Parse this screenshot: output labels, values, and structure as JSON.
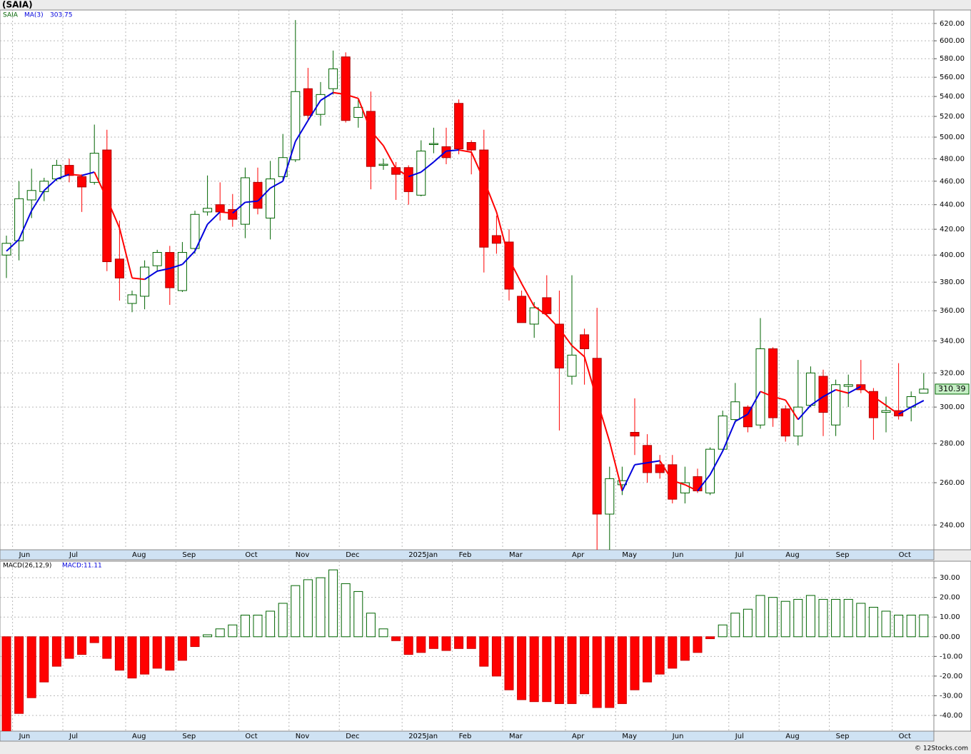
{
  "chart_data": [
    {
      "type": "candlestick",
      "title": "(SAIA)",
      "symbol": "SAIA",
      "categories": [
        null,
        "Jun",
        null,
        null,
        null,
        "Jul",
        null,
        null,
        null,
        null,
        "Aug",
        null,
        null,
        null,
        "Sep",
        null,
        null,
        null,
        null,
        "Oct",
        null,
        null,
        null,
        "Nov",
        null,
        null,
        null,
        "Dec",
        null,
        null,
        null,
        null,
        "2025Jan",
        null,
        null,
        null,
        "Feb",
        null,
        null,
        null,
        "Mar",
        null,
        null,
        null,
        null,
        "Apr",
        null,
        null,
        null,
        "May",
        null,
        null,
        null,
        "Jun",
        null,
        null,
        null,
        null,
        "Jul",
        null,
        null,
        null,
        "Aug",
        null,
        null,
        null,
        "Sep",
        null,
        null,
        null,
        null,
        "Oct",
        null,
        null
      ],
      "open": [
        400,
        411,
        444,
        451,
        462,
        474,
        464,
        459,
        488,
        397,
        365,
        370,
        392,
        402,
        374,
        405,
        434,
        440,
        436,
        424,
        459,
        429,
        464,
        479,
        548,
        522,
        548,
        582,
        519,
        525,
        474,
        472,
        472,
        448,
        493,
        491,
        533,
        495,
        488,
        415,
        410,
        370,
        351,
        369,
        351,
        318,
        344,
        329,
        245,
        259,
        286,
        279,
        269,
        269,
        255,
        263,
        255,
        277,
        293,
        300,
        290,
        335,
        299,
        284,
        301,
        318,
        290,
        312,
        313,
        309,
        297,
        298,
        300,
        308
      ],
      "high": [
        415,
        460,
        471,
        463,
        479,
        480,
        466,
        512,
        507,
        427,
        374,
        396,
        404,
        407,
        410,
        435,
        465,
        459,
        449,
        472,
        472,
        478,
        503,
        624,
        570,
        555,
        589,
        587,
        537,
        545,
        480,
        477,
        474,
        497,
        509,
        509,
        537,
        497,
        507,
        431,
        420,
        374,
        366,
        385,
        374,
        385,
        348,
        362,
        268,
        268,
        305,
        285,
        274,
        274,
        268,
        267,
        278,
        298,
        314,
        301,
        355,
        336,
        301,
        328,
        324,
        322,
        316,
        319,
        328,
        311,
        306,
        326,
        309,
        320
      ],
      "low": [
        383,
        396,
        429,
        443,
        460,
        459,
        434,
        457,
        388,
        367,
        359,
        361,
        388,
        364,
        373,
        401,
        431,
        427,
        422,
        413,
        432,
        412,
        461,
        477,
        516,
        511,
        542,
        514,
        509,
        453,
        470,
        444,
        440,
        447,
        485,
        475,
        484,
        466,
        387,
        401,
        367,
        352,
        342,
        356,
        287,
        313,
        313,
        229,
        229,
        254,
        274,
        260,
        262,
        250,
        250,
        255,
        254,
        276,
        291,
        286,
        288,
        289,
        281,
        279,
        300,
        284,
        284,
        300,
        308,
        282,
        286,
        293,
        292,
        308
      ],
      "close": [
        409,
        445,
        452,
        460,
        474,
        465,
        455,
        485,
        395,
        383,
        371,
        391,
        402,
        376,
        402,
        432,
        437,
        434,
        428,
        463,
        437,
        462,
        481,
        545,
        521,
        542,
        569,
        516,
        529,
        473,
        475,
        466,
        451,
        487,
        494,
        481,
        489,
        488,
        406,
        409,
        375,
        352,
        362,
        358,
        323,
        331,
        335,
        245,
        262,
        261,
        284,
        265,
        265,
        252,
        260,
        256,
        277,
        295,
        303,
        289,
        335,
        294,
        284,
        300,
        320,
        297,
        313,
        313,
        310,
        294,
        298,
        295,
        306,
        310.39
      ],
      "up_color": "#006400",
      "down_color": "#ff0000",
      "log_scale": true,
      "grid": true,
      "ylim": [
        229,
        636
      ],
      "yticks": [
        {
          "value": 240,
          "label": "240.00"
        },
        {
          "value": 260,
          "label": "260.00"
        },
        {
          "value": 280,
          "label": "280.00"
        },
        {
          "value": 300,
          "label": "300.00"
        },
        {
          "value": 320,
          "label": "320.00"
        },
        {
          "value": 340,
          "label": "340.00"
        },
        {
          "value": 360,
          "label": "360.00"
        },
        {
          "value": 380,
          "label": "380.00"
        },
        {
          "value": 400,
          "label": "400.00"
        },
        {
          "value": 420,
          "label": "420.00"
        },
        {
          "value": 440,
          "label": "440.00"
        },
        {
          "value": 460,
          "label": "460.00"
        },
        {
          "value": 480,
          "label": "480.00"
        },
        {
          "value": 500,
          "label": "500.00"
        },
        {
          "value": 520,
          "label": "520.00"
        },
        {
          "value": 540,
          "label": "540.00"
        },
        {
          "value": 560,
          "label": "560.00"
        },
        {
          "value": 580,
          "label": "580.00"
        },
        {
          "value": 600,
          "label": "600.00"
        },
        {
          "value": 620,
          "label": "620.00"
        }
      ],
      "series": [
        {
          "name": "MA(3)",
          "color": "#0000dd",
          "down_color": "#ff0000",
          "values": [
            403,
            412,
            435,
            452,
            462,
            466,
            465,
            468,
            445,
            421,
            383,
            382,
            388,
            390,
            393,
            403,
            424,
            434,
            433,
            442,
            443,
            454,
            460,
            496,
            516,
            536,
            544,
            542,
            538,
            506,
            492,
            471,
            464,
            468,
            477,
            487,
            488,
            486,
            461,
            434,
            397,
            379,
            363,
            357,
            348,
            337,
            330,
            304,
            281,
            256,
            269,
            270,
            271,
            261,
            259,
            256,
            264,
            276,
            292,
            296,
            309,
            306,
            304,
            293,
            301,
            306,
            310,
            308,
            312,
            306,
            301,
            296,
            300,
            303.75
          ]
        }
      ]
    },
    {
      "type": "bar",
      "title": "MACD(26,12,9)",
      "value_label": "MACD:11.11",
      "categories": [
        null,
        "Jun",
        null,
        null,
        null,
        "Jul",
        null,
        null,
        null,
        null,
        "Aug",
        null,
        null,
        null,
        "Sep",
        null,
        null,
        null,
        null,
        "Oct",
        null,
        null,
        null,
        "Nov",
        null,
        null,
        null,
        "Dec",
        null,
        null,
        null,
        null,
        "2025Jan",
        null,
        null,
        null,
        "Feb",
        null,
        null,
        null,
        "Mar",
        null,
        null,
        null,
        null,
        "Apr",
        null,
        null,
        null,
        "May",
        null,
        null,
        null,
        "Jun",
        null,
        null,
        null,
        null,
        "Jul",
        null,
        null,
        null,
        "Aug",
        null,
        null,
        null,
        "Sep",
        null,
        null,
        null,
        null,
        "Oct",
        null,
        null
      ],
      "values": [
        -48,
        -39,
        -31,
        -23,
        -15,
        -11,
        -9,
        -3,
        -11,
        -17,
        -21,
        -19,
        -16,
        -17,
        -12,
        -5,
        1,
        4,
        6,
        11,
        11,
        13,
        17,
        26,
        29,
        30,
        34,
        27,
        23,
        12,
        4,
        -2,
        -9,
        -8,
        -6,
        -7,
        -6,
        -6,
        -15,
        -20,
        -27,
        -32,
        -33,
        -33,
        -34,
        -34,
        -29,
        -36,
        -36,
        -34,
        -27,
        -23,
        -19,
        -16,
        -12,
        -8,
        -1,
        6,
        12,
        14,
        21,
        20,
        18,
        19,
        21,
        19,
        19,
        19,
        17,
        15,
        13,
        11,
        11,
        11.11
      ],
      "up_color": "#006400",
      "down_color": "#ff0000",
      "grid": true,
      "ylim": [
        -48,
        38.4
      ],
      "yticks": [
        {
          "value": -40,
          "label": "-40.00"
        },
        {
          "value": -30,
          "label": "-30.00"
        },
        {
          "value": -20,
          "label": "-20.00"
        },
        {
          "value": -10,
          "label": "-10.00"
        },
        {
          "value": 0,
          "label": "00.00"
        },
        {
          "value": 10,
          "label": "10.00"
        },
        {
          "value": 20,
          "label": "20.00"
        },
        {
          "value": 30,
          "label": "30.00"
        }
      ]
    }
  ],
  "footer": "© 12Stocks.com"
}
